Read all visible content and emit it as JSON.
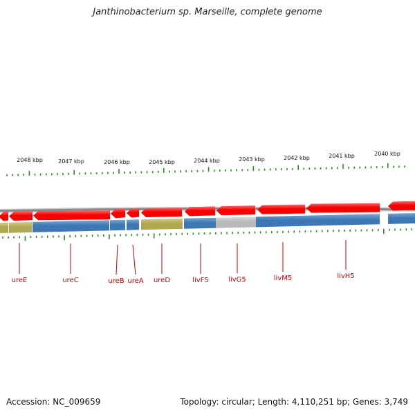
{
  "title": "Janthinobacterium sp. Marseille, complete genome",
  "footer": {
    "accession": "Accession: NC_009659",
    "summary": "Topology: circular; Length: 4,110,251 bp; Genes: 3,749"
  },
  "colors": {
    "gene_red": "#f80000",
    "gene_red_light": "#ff6a6a",
    "band_blue": "#3d78b5",
    "band_olive": "#b0a850",
    "band_gray": "#b8b8b8",
    "tick_green": "#2a8a1a",
    "label_red": "#c00000",
    "backbone_gray": "#888888"
  },
  "scale": {
    "kbp_labels": [
      "2048 kbp",
      "2047 kbp",
      "2046 kbp",
      "2045 kbp",
      "2044 kbp",
      "2043 kbp",
      "2042 kbp",
      "2041 kbp",
      "2040 kbp"
    ]
  },
  "genes": [
    {
      "name": "ureE",
      "strand": "minus",
      "band": "olive"
    },
    {
      "name": "ureC",
      "strand": "minus",
      "band": "blue"
    },
    {
      "name": "ureB",
      "strand": "minus",
      "band": "blue"
    },
    {
      "name": "ureA",
      "strand": "minus",
      "band": "blue"
    },
    {
      "name": "ureD",
      "strand": "minus",
      "band": "olive"
    },
    {
      "name": "livF5",
      "strand": "minus",
      "band": "blue"
    },
    {
      "name": "livG5",
      "strand": "minus",
      "band": "gray"
    },
    {
      "name": "livM5",
      "strand": "minus",
      "band": "blue"
    },
    {
      "name": "livH5",
      "strand": "minus",
      "band": "blue"
    }
  ]
}
